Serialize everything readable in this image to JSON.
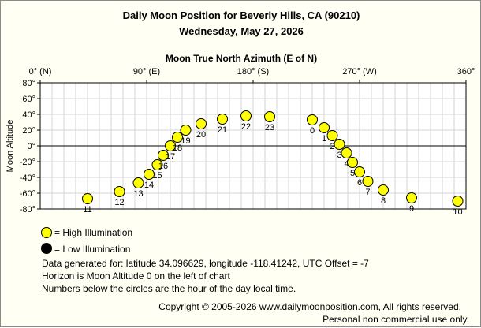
{
  "title": "Daily Moon Position for Beverly Hills, CA (90210)",
  "subtitle": "Wednesday, May 27, 2026",
  "chart_data": {
    "type": "scatter",
    "title": "Moon True North Azimuth (E of N)",
    "xlabel": "Moon True North Azimuth (E of N)",
    "ylabel": "Moon Altitude",
    "xlim": [
      0,
      360
    ],
    "ylim": [
      -80,
      80
    ],
    "x_ticks": [
      0,
      90,
      180,
      270,
      360
    ],
    "x_tick_labels": [
      "0° (N)",
      "90° (E)",
      "180° (S)",
      "270° (W)",
      "360°"
    ],
    "y_ticks": [
      80,
      60,
      40,
      20,
      0,
      -20,
      -40,
      -60,
      -80
    ],
    "y_tick_labels": [
      "80°",
      "60°",
      "40°",
      "20°",
      "0°",
      "-20°",
      "-40°",
      "-60°",
      "-80°"
    ],
    "grid": true,
    "horizon_altitude": 0,
    "points": [
      {
        "hour": "0",
        "azimuth": 230,
        "altitude": 33,
        "illumination": "high"
      },
      {
        "hour": "1",
        "azimuth": 240,
        "altitude": 23,
        "illumination": "high"
      },
      {
        "hour": "2",
        "azimuth": 247,
        "altitude": 13,
        "illumination": "high"
      },
      {
        "hour": "3",
        "azimuth": 253,
        "altitude": 2,
        "illumination": "high"
      },
      {
        "hour": "4",
        "azimuth": 259,
        "altitude": -9,
        "illumination": "high"
      },
      {
        "hour": "5",
        "azimuth": 264,
        "altitude": -21,
        "illumination": "high"
      },
      {
        "hour": "6",
        "azimuth": 270,
        "altitude": -33,
        "illumination": "high"
      },
      {
        "hour": "7",
        "azimuth": 277,
        "altitude": -45,
        "illumination": "high"
      },
      {
        "hour": "8",
        "azimuth": 290,
        "altitude": -56,
        "illumination": "high"
      },
      {
        "hour": "9",
        "azimuth": 314,
        "altitude": -66,
        "illumination": "high"
      },
      {
        "hour": "10",
        "azimuth": 353,
        "altitude": -70,
        "illumination": "high"
      },
      {
        "hour": "11",
        "azimuth": 40,
        "altitude": -67,
        "illumination": "high"
      },
      {
        "hour": "12",
        "azimuth": 67,
        "altitude": -58,
        "illumination": "high"
      },
      {
        "hour": "13",
        "azimuth": 83,
        "altitude": -47,
        "illumination": "high"
      },
      {
        "hour": "14",
        "azimuth": 92,
        "altitude": -36,
        "illumination": "high"
      },
      {
        "hour": "15",
        "azimuth": 99,
        "altitude": -24,
        "illumination": "high"
      },
      {
        "hour": "16",
        "azimuth": 104,
        "altitude": -12,
        "illumination": "high"
      },
      {
        "hour": "17",
        "azimuth": 110,
        "altitude": 0,
        "illumination": "high"
      },
      {
        "hour": "18",
        "azimuth": 116,
        "altitude": 11,
        "illumination": "high"
      },
      {
        "hour": "19",
        "azimuth": 123,
        "altitude": 20,
        "illumination": "high"
      },
      {
        "hour": "20",
        "azimuth": 136,
        "altitude": 28,
        "illumination": "high"
      },
      {
        "hour": "21",
        "azimuth": 154,
        "altitude": 34,
        "illumination": "high"
      },
      {
        "hour": "22",
        "azimuth": 174,
        "altitude": 38,
        "illumination": "high"
      },
      {
        "hour": "23",
        "azimuth": 194,
        "altitude": 37,
        "illumination": "high"
      }
    ],
    "colors": {
      "high": "#ffff00",
      "low": "#000000",
      "frame": "#fffff4",
      "plot_bg": "#ffffff",
      "grid": "#d4d4d4"
    }
  },
  "legend": {
    "high_label": "= High Illumination",
    "low_label": "= Low Illumination"
  },
  "notes": [
    "Data generated for: latitude 34.096629, longitude -118.41242, UTC Offset = -7",
    "Horizon is Moon Altitude 0 on the left of chart",
    "Numbers below the circles are the hour of the day local time."
  ],
  "copyright": "Copyright © 2005-2026 www.dailymoonposition.com, All rights reserved.",
  "license": "Personal non commercial use only."
}
